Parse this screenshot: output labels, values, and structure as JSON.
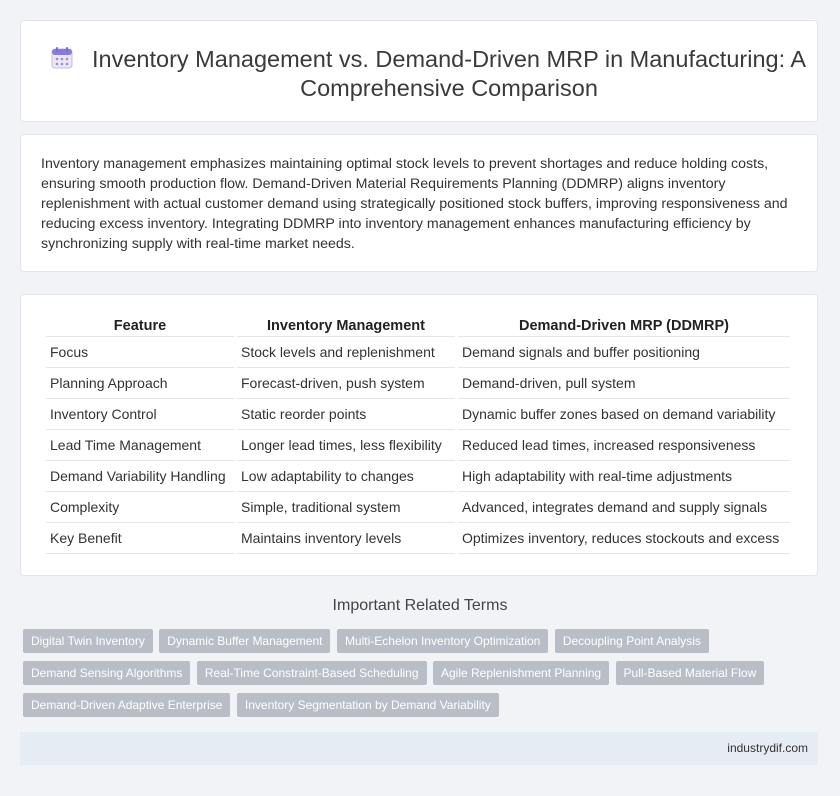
{
  "header": {
    "icon": "calendar-icon",
    "title": "Inventory Management vs. Demand-Driven MRP in Manufacturing: A Comprehensive Comparison"
  },
  "intro": {
    "text": "Inventory management emphasizes maintaining optimal stock levels to prevent shortages and reduce holding costs, ensuring smooth production flow. Demand-Driven Material Requirements Planning (DDMRP) aligns inventory replenishment with actual customer demand using strategically positioned stock buffers, improving responsiveness and reducing excess inventory. Integrating DDMRP into inventory management enhances manufacturing efficiency by synchronizing supply with real-time market needs."
  },
  "table": {
    "headers": [
      "Feature",
      "Inventory Management",
      "Demand-Driven MRP (DDMRP)"
    ],
    "rows": [
      [
        "Focus",
        "Stock levels and replenishment",
        "Demand signals and buffer positioning"
      ],
      [
        "Planning Approach",
        "Forecast-driven, push system",
        "Demand-driven, pull system"
      ],
      [
        "Inventory Control",
        "Static reorder points",
        "Dynamic buffer zones based on demand variability"
      ],
      [
        "Lead Time Management",
        "Longer lead times, less flexibility",
        "Reduced lead times, increased responsiveness"
      ],
      [
        "Demand Variability Handling",
        "Low adaptability to changes",
        "High adaptability with real-time adjustments"
      ],
      [
        "Complexity",
        "Simple, traditional system",
        "Advanced, integrates demand and supply signals"
      ],
      [
        "Key Benefit",
        "Maintains inventory levels",
        "Optimizes inventory, reduces stockouts and excess"
      ]
    ]
  },
  "related": {
    "heading": "Important Related Terms",
    "tags": [
      "Digital Twin Inventory",
      "Dynamic Buffer Management",
      "Multi-Echelon Inventory Optimization",
      "Decoupling Point Analysis",
      "Demand Sensing Algorithms",
      "Real-Time Constraint-Based Scheduling",
      "Agile Replenishment Planning",
      "Pull-Based Material Flow",
      "Demand-Driven Adaptive Enterprise",
      "Inventory Segmentation by Demand Variability"
    ]
  },
  "footer": {
    "site": "industrydif.com"
  }
}
